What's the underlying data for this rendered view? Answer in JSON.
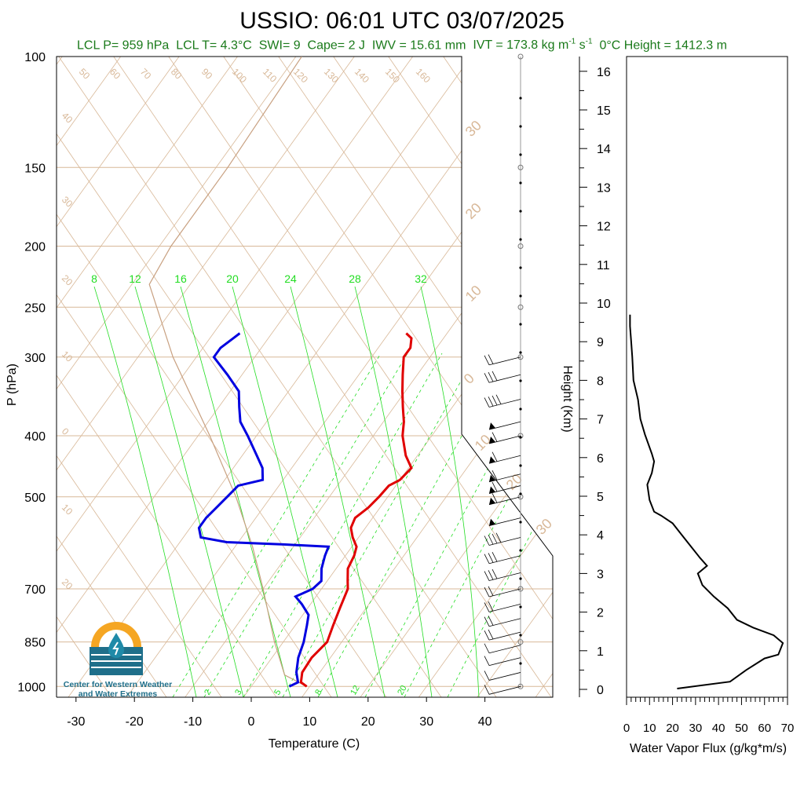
{
  "header": {
    "title": "USSIO: 06:01 UTC 03/07/2025",
    "subtitle_parts": {
      "lcl_p": "LCL P= 959 hPa",
      "lcl_t": "LCL T= 4.3°C",
      "swi": "SWI= 9",
      "cape": "Cape= 2 J",
      "iwv": "IWV = 15.61 mm",
      "ivt_prefix": "IVT = 173.8 kg m",
      "ivt_exp1": "-1",
      "ivt_mid": " s",
      "ivt_exp2": "-1",
      "freezing": "0°C Height = 1412.3 m"
    }
  },
  "logo": {
    "line1": "Center for Western Weather",
    "line2": "and Water Extremes",
    "icon": "water-drop-sun-icon"
  },
  "colors": {
    "temperature": "#e00000",
    "dewpoint": "#0000e0",
    "isotherm_lines": "#d8b898",
    "mixing_ratio": "#22dd22",
    "parcel": "#c8a080",
    "flux": "#000000",
    "green_text": "#1a7a1a"
  },
  "chart_data": [
    {
      "type": "line",
      "name": "skew-t",
      "xlabel": "Temperature (C)",
      "ylabel": "P (hPa)",
      "xlim": [
        -35,
        52
      ],
      "ylim": [
        1030,
        100
      ],
      "y_scale": "log",
      "x_ticks": [
        -30,
        -20,
        -10,
        0,
        10,
        20,
        30,
        40
      ],
      "y_ticks": [
        100,
        150,
        200,
        250,
        300,
        400,
        500,
        700,
        850,
        1000
      ],
      "skewed_isotherm_labels": [
        "50",
        "60",
        "70",
        "80",
        "90",
        "100",
        "110",
        "120",
        "130",
        "140",
        "150",
        "160"
      ],
      "left_edge_labels": [
        "40",
        "30",
        "20",
        "10",
        "0",
        "10",
        "20"
      ],
      "skew_labels": [
        "30",
        "20",
        "10",
        "0",
        "10",
        "20",
        "30"
      ],
      "mixing_ratio_labels_top": [
        "8",
        "12",
        "16",
        "20",
        "24",
        "28",
        "32"
      ],
      "mixing_ratio_labels_bottom": [
        "2",
        "3",
        "5",
        "8",
        "12",
        "20"
      ],
      "series": [
        {
          "name": "Temperature",
          "points": [
            [
              1000,
              9.5
            ],
            [
              985,
              8.0
            ],
            [
              950,
              7.0
            ],
            [
              900,
              6.8
            ],
            [
              850,
              7.5
            ],
            [
              800,
              6.5
            ],
            [
              750,
              5.5
            ],
            [
              700,
              4.5
            ],
            [
              680,
              3.5
            ],
            [
              650,
              2.0
            ],
            [
              620,
              1.5
            ],
            [
              600,
              0.8
            ],
            [
              580,
              -1.0
            ],
            [
              560,
              -2.5
            ],
            [
              540,
              -3.0
            ],
            [
              520,
              -2.0
            ],
            [
              500,
              -1.5
            ],
            [
              480,
              -1.2
            ],
            [
              470,
              0.0
            ],
            [
              450,
              0.5
            ],
            [
              430,
              -2.0
            ],
            [
              400,
              -5.0
            ],
            [
              380,
              -6.5
            ],
            [
              360,
              -8.5
            ],
            [
              340,
              -10.5
            ],
            [
              320,
              -12.5
            ],
            [
              300,
              -14.5
            ],
            [
              290,
              -14.5
            ],
            [
              280,
              -15.5
            ],
            [
              275,
              -17.0
            ]
          ]
        },
        {
          "name": "Dewpoint",
          "points": [
            [
              1000,
              6.5
            ],
            [
              985,
              7.5
            ],
            [
              950,
              6.0
            ],
            [
              900,
              4.5
            ],
            [
              850,
              3.5
            ],
            [
              800,
              2.0
            ],
            [
              770,
              1.0
            ],
            [
              740,
              -1.5
            ],
            [
              720,
              -3.5
            ],
            [
              700,
              -1.5
            ],
            [
              680,
              -1.0
            ],
            [
              650,
              -2.5
            ],
            [
              620,
              -3.5
            ],
            [
              600,
              -4.0
            ],
            [
              595,
              -12.0
            ],
            [
              590,
              -22.0
            ],
            [
              580,
              -27.0
            ],
            [
              560,
              -28.5
            ],
            [
              540,
              -28.5
            ],
            [
              520,
              -28.0
            ],
            [
              500,
              -27.5
            ],
            [
              480,
              -27.0
            ],
            [
              470,
              -23.5
            ],
            [
              450,
              -25.0
            ],
            [
              430,
              -27.5
            ],
            [
              400,
              -31.5
            ],
            [
              380,
              -34.5
            ],
            [
              360,
              -36.5
            ],
            [
              340,
              -38.5
            ],
            [
              320,
              -42.5
            ],
            [
              300,
              -47.0
            ],
            [
              290,
              -47.0
            ],
            [
              280,
              -46.0
            ],
            [
              275,
              -45.5
            ]
          ]
        },
        {
          "name": "Parcel",
          "points": [
            [
              1000,
              9.5
            ],
            [
              959,
              4.3
            ],
            [
              850,
              -1.5
            ],
            [
              700,
              -10.0
            ],
            [
              600,
              -17.0
            ],
            [
              500,
              -26.0
            ],
            [
              400,
              -38.0
            ],
            [
              300,
              -54.0
            ],
            [
              230,
              -67.0
            ],
            [
              200,
              -68.0
            ],
            [
              150,
              -68.0
            ],
            [
              100,
              -69.0
            ]
          ]
        }
      ]
    },
    {
      "type": "line",
      "name": "water-vapor-flux-profile",
      "xlabel": "Water Vapor Flux (g/kg*m/s)",
      "ylabel": "Height (Km)",
      "xlim": [
        0,
        70
      ],
      "ylim": [
        0,
        16.5
      ],
      "x_ticks": [
        0,
        10,
        20,
        30,
        40,
        50,
        60,
        70
      ],
      "y_ticks": [
        0,
        1,
        2,
        3,
        4,
        5,
        6,
        7,
        8,
        9,
        10,
        11,
        12,
        13,
        14,
        15,
        16
      ],
      "series": [
        {
          "name": "Water Vapor Flux",
          "points": [
            [
              22,
              0.02
            ],
            [
              45,
              0.2
            ],
            [
              52,
              0.5
            ],
            [
              60,
              0.8
            ],
            [
              66,
              0.9
            ],
            [
              68,
              1.2
            ],
            [
              64,
              1.4
            ],
            [
              55,
              1.6
            ],
            [
              48,
              1.8
            ],
            [
              44,
              2.1
            ],
            [
              38,
              2.4
            ],
            [
              33,
              2.7
            ],
            [
              31,
              3.0
            ],
            [
              35,
              3.2
            ],
            [
              32,
              3.4
            ],
            [
              28,
              3.7
            ],
            [
              24,
              4.0
            ],
            [
              20,
              4.3
            ],
            [
              15,
              4.5
            ],
            [
              12,
              4.6
            ],
            [
              10,
              4.9
            ],
            [
              9,
              5.3
            ],
            [
              11,
              5.6
            ],
            [
              12,
              5.9
            ],
            [
              11,
              6.1
            ],
            [
              8,
              6.6
            ],
            [
              6,
              7.0
            ],
            [
              5,
              7.5
            ],
            [
              3,
              8.0
            ],
            [
              2.5,
              8.6
            ],
            [
              2,
              9.0
            ],
            [
              1.5,
              9.4
            ],
            [
              1.5,
              9.7
            ]
          ]
        }
      ]
    },
    {
      "type": "scatter",
      "name": "wind-barbs",
      "x": "pressure_hPa",
      "points": [
        [
          300,
          10
        ],
        [
          320,
          15
        ],
        [
          350,
          20
        ],
        [
          380,
          25
        ],
        [
          400,
          30
        ],
        [
          430,
          30
        ],
        [
          460,
          30
        ],
        [
          480,
          30
        ],
        [
          500,
          30
        ],
        [
          540,
          25
        ],
        [
          580,
          20
        ],
        [
          620,
          15
        ],
        [
          660,
          15
        ],
        [
          700,
          10
        ],
        [
          740,
          10
        ],
        [
          780,
          10
        ],
        [
          820,
          10
        ],
        [
          860,
          5
        ],
        [
          900,
          5
        ],
        [
          950,
          5
        ],
        [
          1000,
          5
        ]
      ]
    }
  ]
}
